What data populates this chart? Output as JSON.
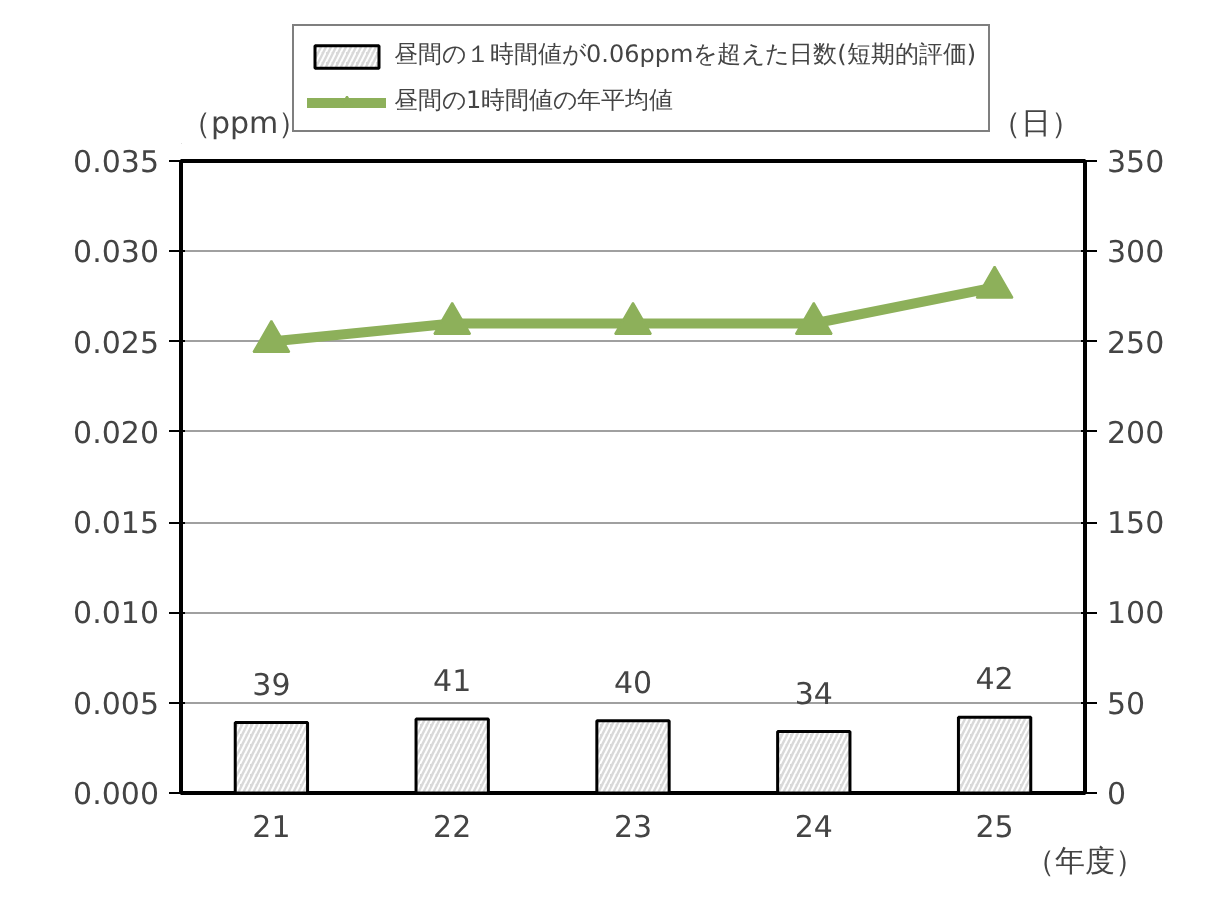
{
  "chart_data": {
    "type": "bar",
    "categories": [
      "21",
      "22",
      "23",
      "24",
      "25"
    ],
    "xlabel": "（年度）",
    "ylabel": "（ppm）",
    "y2label": "（日）",
    "series": [
      {
        "name": "昼間の１時間値が0.06ppmを超えた日数(短期的評価)",
        "axis": "y2",
        "color": "#d9d9d9",
        "values": [
          39,
          41,
          40,
          34,
          42
        ],
        "data_labels": true
      },
      {
        "name": "昼間の1時間値の年平均値",
        "type": "line",
        "marker": "triangle",
        "color": "#8db05a",
        "values": [
          0.025,
          0.026,
          0.026,
          0.026,
          0.028
        ]
      }
    ],
    "ylim": [
      0,
      0.035
    ],
    "yticks": [
      {
        "value": 0,
        "label": "0.000"
      },
      {
        "value": 0.005,
        "label": "0.005"
      },
      {
        "value": 0.01,
        "label": "0.010"
      },
      {
        "value": 0.015,
        "label": "0.015"
      },
      {
        "value": 0.02,
        "label": "0.020"
      },
      {
        "value": 0.025,
        "label": "0.025"
      },
      {
        "value": 0.03,
        "label": "0.030"
      },
      {
        "value": 0.035,
        "label": "0.035"
      }
    ],
    "y2lim": [
      0,
      350
    ],
    "y2ticks": [
      0,
      50,
      100,
      150,
      200,
      250,
      300,
      350
    ],
    "grid": "y",
    "legend": "top"
  }
}
